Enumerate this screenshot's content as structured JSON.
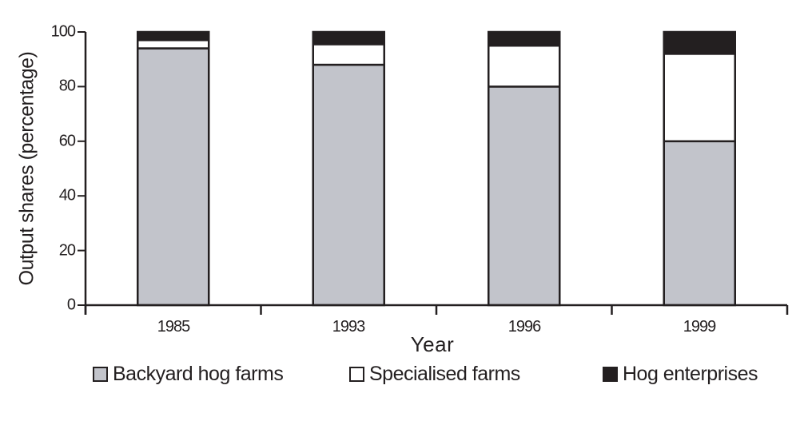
{
  "chart_data": {
    "type": "bar",
    "stacked": true,
    "title": "",
    "xlabel": "Year",
    "ylabel": "Output shares (percentage)",
    "ylim": [
      0,
      100
    ],
    "yticks": [
      0,
      20,
      40,
      60,
      80,
      100
    ],
    "categories": [
      "1985",
      "1993",
      "1996",
      "1999"
    ],
    "series": [
      {
        "name": "Backyard hog farms",
        "color": "#c2c4cb",
        "values": [
          94,
          88,
          80,
          60
        ]
      },
      {
        "name": "Specialised farms",
        "color": "#ffffff",
        "values": [
          3,
          7.5,
          15,
          32
        ]
      },
      {
        "name": "Hog enterprises",
        "color": "#231f20",
        "values": [
          3,
          4.5,
          5,
          8
        ]
      }
    ],
    "grid": false,
    "legend_position": "bottom"
  },
  "axis": {
    "ylabel": "Output shares (percentage)",
    "xlabel": "Year",
    "yticks": [
      "0",
      "20",
      "40",
      "60",
      "80",
      "100"
    ],
    "xticks": [
      "1985",
      "1993",
      "1996",
      "1999"
    ]
  },
  "legend": [
    {
      "label": "Backyard hog farms",
      "color": "#c2c4cb"
    },
    {
      "label": "Specialised farms",
      "color": "#ffffff"
    },
    {
      "label": "Hog enterprises",
      "color": "#231f20"
    }
  ]
}
